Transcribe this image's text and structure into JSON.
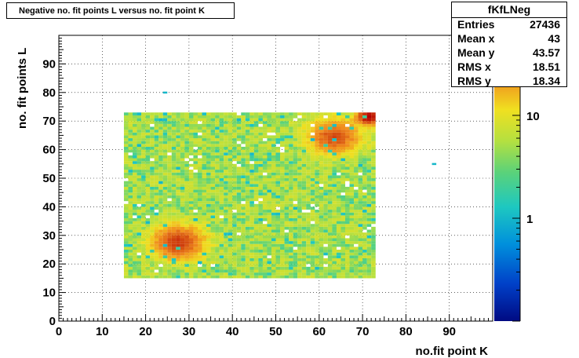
{
  "chart_data": {
    "type": "heatmap",
    "title": "Negative no. fit points L versus no. fit point K",
    "xlabel": "no.fit point K",
    "ylabel": "no. fit points  L",
    "xlim": [
      0,
      100
    ],
    "ylim": [
      0,
      100
    ],
    "x_ticks": [
      "0",
      "10",
      "20",
      "30",
      "40",
      "50",
      "60",
      "70",
      "80",
      "90"
    ],
    "y_ticks": [
      "0",
      "10",
      "20",
      "30",
      "40",
      "50",
      "60",
      "70",
      "80",
      "90"
    ],
    "color_scale": {
      "type": "log",
      "range": [
        0.1,
        60
      ],
      "tick_labels": [
        "1",
        "10"
      ]
    },
    "grid": true,
    "fill_region": {
      "x": [
        15,
        73
      ],
      "y": [
        15,
        73
      ],
      "typical_count": 5
    },
    "hot_spots": [
      {
        "x": 27,
        "y": 27,
        "count": 40
      },
      {
        "x": 63,
        "y": 64,
        "count": 35
      },
      {
        "x": 71,
        "y": 71,
        "count": 60
      }
    ],
    "outliers": [
      {
        "x": 24,
        "y": 80,
        "count": 1
      },
      {
        "x": 86,
        "y": 55,
        "count": 1
      }
    ]
  },
  "stats": {
    "name": "fKfLNeg",
    "rows": [
      {
        "label": "Entries",
        "value": "27436"
      },
      {
        "label": "Mean x",
        "value": "43"
      },
      {
        "label": "Mean y",
        "value": "43.57"
      },
      {
        "label": "RMS x",
        "value": "18.51"
      },
      {
        "label": "RMS y",
        "value": "18.34"
      }
    ]
  }
}
